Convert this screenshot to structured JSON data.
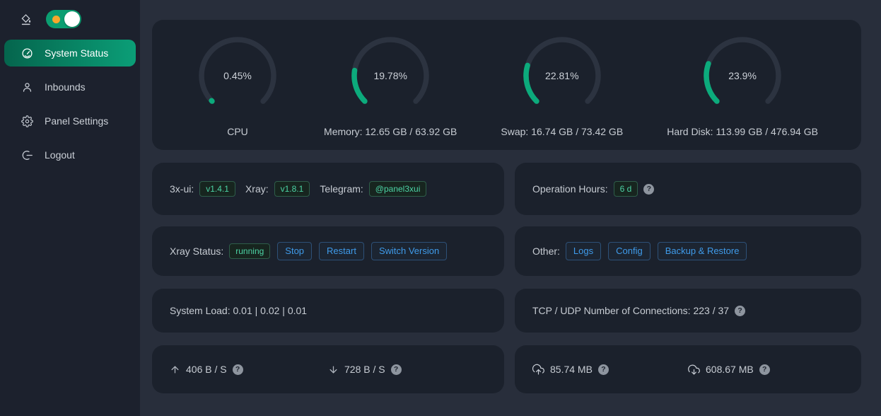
{
  "colors": {
    "page_bg": "#282e3b",
    "sidebar_bg": "#1c212d",
    "card_bg": "#1b212c",
    "accent_green": "#0cab7c",
    "menu_active_gradient": [
      "#05654d",
      "#0b9e77"
    ],
    "tag_green_text": "#4cd3a5",
    "button_blue_text": "#3f9bea",
    "toggle_bg": "#0b9e71",
    "toggle_sun": "#f7a72b"
  },
  "sidebar": {
    "items": [
      {
        "label": "System Status",
        "icon": "dashboard-icon",
        "active": true
      },
      {
        "label": "Inbounds",
        "icon": "user-icon",
        "active": false
      },
      {
        "label": "Panel Settings",
        "icon": "gear-icon",
        "active": false
      },
      {
        "label": "Logout",
        "icon": "logout-icon",
        "active": false
      }
    ]
  },
  "chart_data": {
    "type": "gauge",
    "title": "System resource usage gauges",
    "arc": {
      "start_deg": 225,
      "sweep_deg": 270
    },
    "track_color": "#2c3340",
    "progress_color": "#0cab7c",
    "gauges": [
      {
        "label": "CPU",
        "percent": 0.45,
        "display": "0.45%"
      },
      {
        "label": "Memory: 12.65 GB / 63.92 GB",
        "percent": 19.78,
        "display": "19.78%"
      },
      {
        "label": "Swap: 16.74 GB / 73.42 GB",
        "percent": 22.81,
        "display": "22.81%"
      },
      {
        "label": "Hard Disk: 113.99 GB / 476.94 GB",
        "percent": 23.9,
        "display": "23.9%"
      }
    ]
  },
  "cards": {
    "versions": {
      "xui_label": "3x-ui:",
      "xui_version": "v1.4.1",
      "xray_label": "Xray:",
      "xray_version": "v1.8.1",
      "telegram_label": "Telegram:",
      "telegram_handle": "@panel3xui"
    },
    "operation_hours": {
      "label": "Operation Hours:",
      "value": "6 d"
    },
    "xray_status": {
      "label": "Xray Status:",
      "status": "running",
      "buttons": [
        "Stop",
        "Restart",
        "Switch Version"
      ]
    },
    "other": {
      "label": "Other:",
      "buttons": [
        "Logs",
        "Config",
        "Backup & Restore"
      ]
    },
    "system_load": {
      "text": "System Load: 0.01 | 0.02 | 0.01"
    },
    "connections": {
      "text": "TCP / UDP Number of Connections: 223 / 37"
    },
    "network_speed": {
      "upload": "406 B / S",
      "download": "728 B / S"
    },
    "network_total": {
      "upload": "85.74 MB",
      "download": "608.67 MB"
    },
    "help_glyph": "?"
  }
}
